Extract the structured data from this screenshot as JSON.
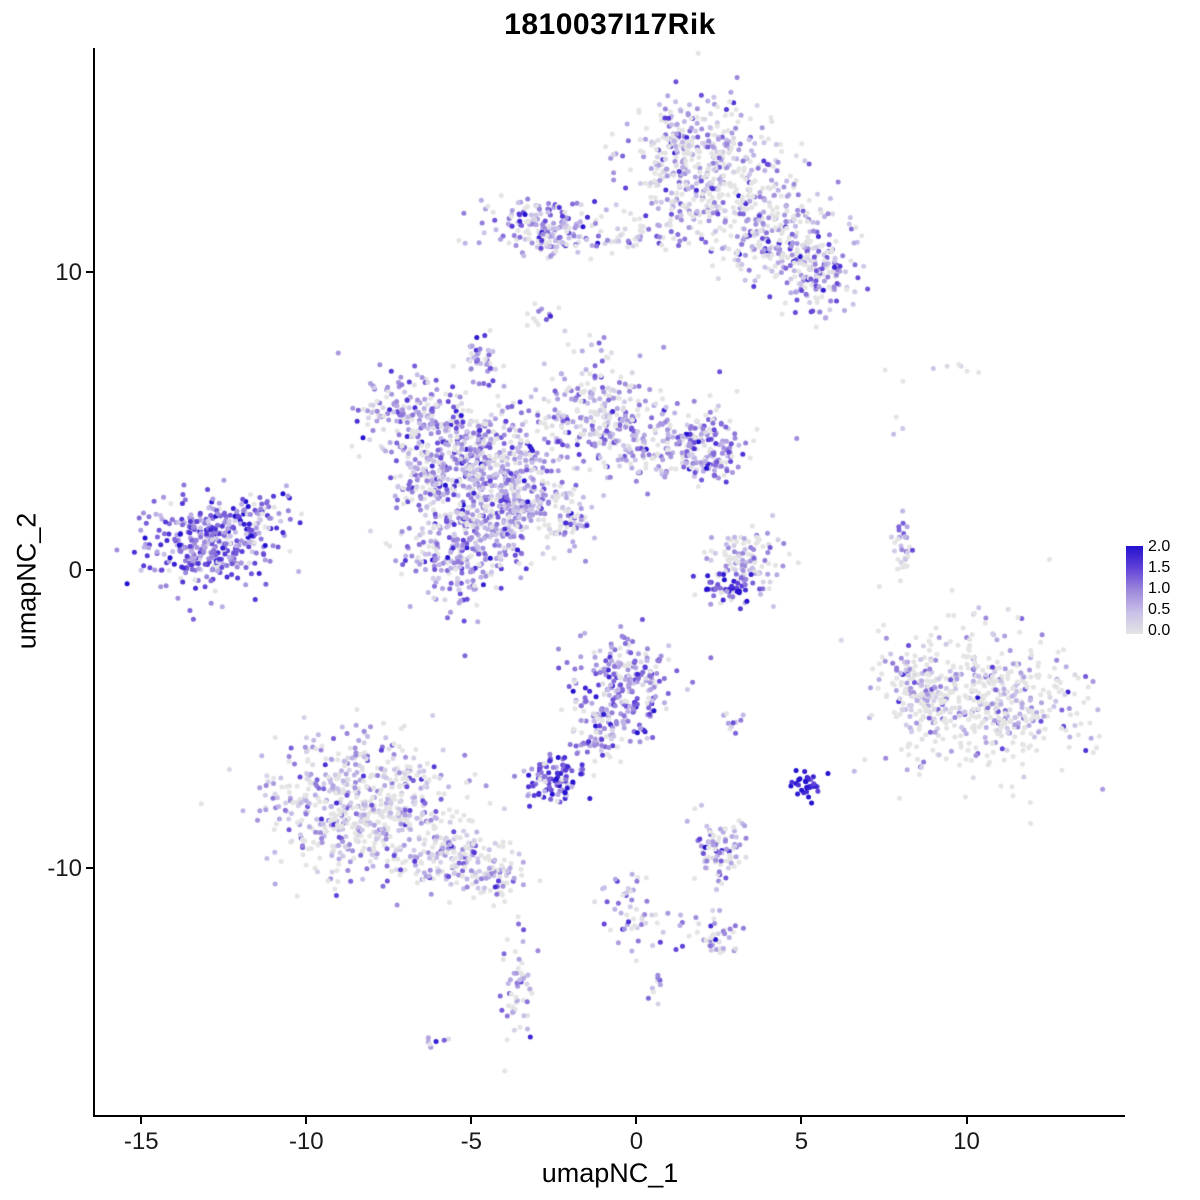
{
  "title": "1810037I17Rik",
  "chart_data": {
    "type": "scatter",
    "title": "1810037I17Rik",
    "xlabel": "umapNC_1",
    "ylabel": "umapNC_2",
    "xlim": [
      -16.4,
      14.8
    ],
    "ylim": [
      -18.3,
      17.5
    ],
    "x_ticks": [
      -15,
      -10,
      -5,
      0,
      5,
      10
    ],
    "y_ticks": [
      -10,
      0,
      10
    ],
    "grid": false,
    "point_radius": 2.5,
    "seed": 42,
    "legend": {
      "position": "right",
      "min": 0.0,
      "max": 2.0,
      "ticks": [
        "2.0",
        "1.5",
        "1.0",
        "0.5",
        "0.0"
      ],
      "colors_low_to_high": [
        "#E4E4E4",
        "#C9BFE8",
        "#9C87DB",
        "#6141D8",
        "#2311CF"
      ]
    },
    "cluster_fields": [
      "cx",
      "cy",
      "sx",
      "sy",
      "n",
      "expr_mean",
      "expr_sd",
      "zero_frac"
    ],
    "clusters": [
      [
        1.8,
        14.2,
        1.1,
        0.8,
        260,
        0.6,
        0.5,
        0.3
      ],
      [
        2.3,
        12.6,
        1.3,
        0.8,
        240,
        0.55,
        0.5,
        0.35
      ],
      [
        4.4,
        11.0,
        1.0,
        0.8,
        230,
        0.75,
        0.55,
        0.25
      ],
      [
        5.4,
        9.7,
        0.6,
        0.6,
        110,
        0.8,
        0.55,
        0.2
      ],
      [
        -2.7,
        11.5,
        0.9,
        0.5,
        170,
        0.85,
        0.5,
        0.2
      ],
      [
        0.2,
        11.2,
        1.4,
        0.25,
        60,
        0.6,
        0.5,
        0.3
      ],
      [
        -2.9,
        8.4,
        0.25,
        0.3,
        12,
        0.6,
        0.5,
        0.3
      ],
      [
        -4.6,
        7.1,
        0.3,
        0.35,
        40,
        1.0,
        0.5,
        0.1
      ],
      [
        -7.0,
        5.3,
        0.7,
        0.7,
        140,
        0.85,
        0.5,
        0.15
      ],
      [
        -5.5,
        4.3,
        0.9,
        0.8,
        170,
        0.8,
        0.5,
        0.2
      ],
      [
        -4.2,
        3.4,
        1.1,
        1.0,
        330,
        0.8,
        0.5,
        0.2
      ],
      [
        -1.3,
        5.5,
        0.9,
        0.9,
        200,
        0.7,
        0.5,
        0.25
      ],
      [
        0.8,
        4.3,
        1.2,
        0.7,
        220,
        0.7,
        0.5,
        0.25
      ],
      [
        2.2,
        3.9,
        0.5,
        0.5,
        90,
        0.85,
        0.5,
        0.15
      ],
      [
        -5.3,
        0.8,
        0.9,
        1.0,
        270,
        0.85,
        0.5,
        0.15
      ],
      [
        -3.9,
        2.0,
        0.8,
        0.8,
        190,
        0.75,
        0.5,
        0.2
      ],
      [
        -2.1,
        1.7,
        0.4,
        0.6,
        70,
        0.7,
        0.5,
        0.25
      ],
      [
        -6.4,
        2.9,
        0.5,
        0.5,
        90,
        0.85,
        0.5,
        0.15
      ],
      [
        -12.9,
        0.9,
        1.0,
        0.75,
        360,
        1.15,
        0.5,
        0.06
      ],
      [
        -11.4,
        1.9,
        0.5,
        0.4,
        45,
        1.1,
        0.5,
        0.08
      ],
      [
        3.3,
        0.2,
        0.6,
        0.7,
        110,
        0.6,
        0.5,
        0.3
      ],
      [
        2.7,
        -0.6,
        0.4,
        0.25,
        45,
        1.5,
        0.4,
        0.03
      ],
      [
        8.1,
        0.6,
        0.15,
        0.55,
        30,
        0.7,
        0.5,
        0.25
      ],
      [
        10.4,
        -4.4,
        1.45,
        1.2,
        520,
        0.45,
        0.55,
        0.45
      ],
      [
        8.5,
        -4.2,
        0.5,
        0.8,
        90,
        0.6,
        0.55,
        0.35
      ],
      [
        -0.4,
        -3.8,
        0.75,
        0.9,
        230,
        0.95,
        0.5,
        0.12
      ],
      [
        -1.1,
        -5.4,
        0.5,
        0.6,
        80,
        0.8,
        0.5,
        0.18
      ],
      [
        2.9,
        -5.1,
        0.2,
        0.2,
        10,
        0.9,
        0.5,
        0.1
      ],
      [
        -2.5,
        -6.9,
        0.45,
        0.4,
        95,
        1.35,
        0.5,
        0.04
      ],
      [
        5.2,
        -7.2,
        0.2,
        0.25,
        32,
        1.85,
        0.25,
        0.0
      ],
      [
        -8.3,
        -8.0,
        1.4,
        1.1,
        620,
        0.6,
        0.5,
        0.32
      ],
      [
        -5.7,
        -9.6,
        0.9,
        0.5,
        130,
        0.6,
        0.5,
        0.3
      ],
      [
        -4.3,
        -10.3,
        0.5,
        0.4,
        60,
        0.65,
        0.5,
        0.3
      ],
      [
        2.5,
        -9.4,
        0.45,
        0.55,
        85,
        0.7,
        0.55,
        0.25
      ],
      [
        -0.3,
        -11.4,
        0.35,
        0.8,
        45,
        0.75,
        0.5,
        0.2
      ],
      [
        1.1,
        -12.1,
        0.5,
        0.4,
        14,
        0.7,
        0.5,
        0.25
      ],
      [
        2.5,
        -12.4,
        0.35,
        0.4,
        35,
        0.75,
        0.5,
        0.2
      ],
      [
        -3.6,
        -14.1,
        0.25,
        0.95,
        55,
        0.75,
        0.5,
        0.2
      ],
      [
        0.5,
        -13.9,
        0.2,
        0.3,
        9,
        0.8,
        0.5,
        0.2
      ],
      [
        -6.1,
        -15.8,
        0.25,
        0.15,
        7,
        0.7,
        0.5,
        0.2
      ],
      [
        8.9,
        6.7,
        1.2,
        0.25,
        8,
        0.15,
        0.3,
        0.5
      ],
      [
        7.8,
        4.7,
        0.3,
        0.2,
        3,
        0.2,
        0.3,
        0.5
      ]
    ]
  }
}
